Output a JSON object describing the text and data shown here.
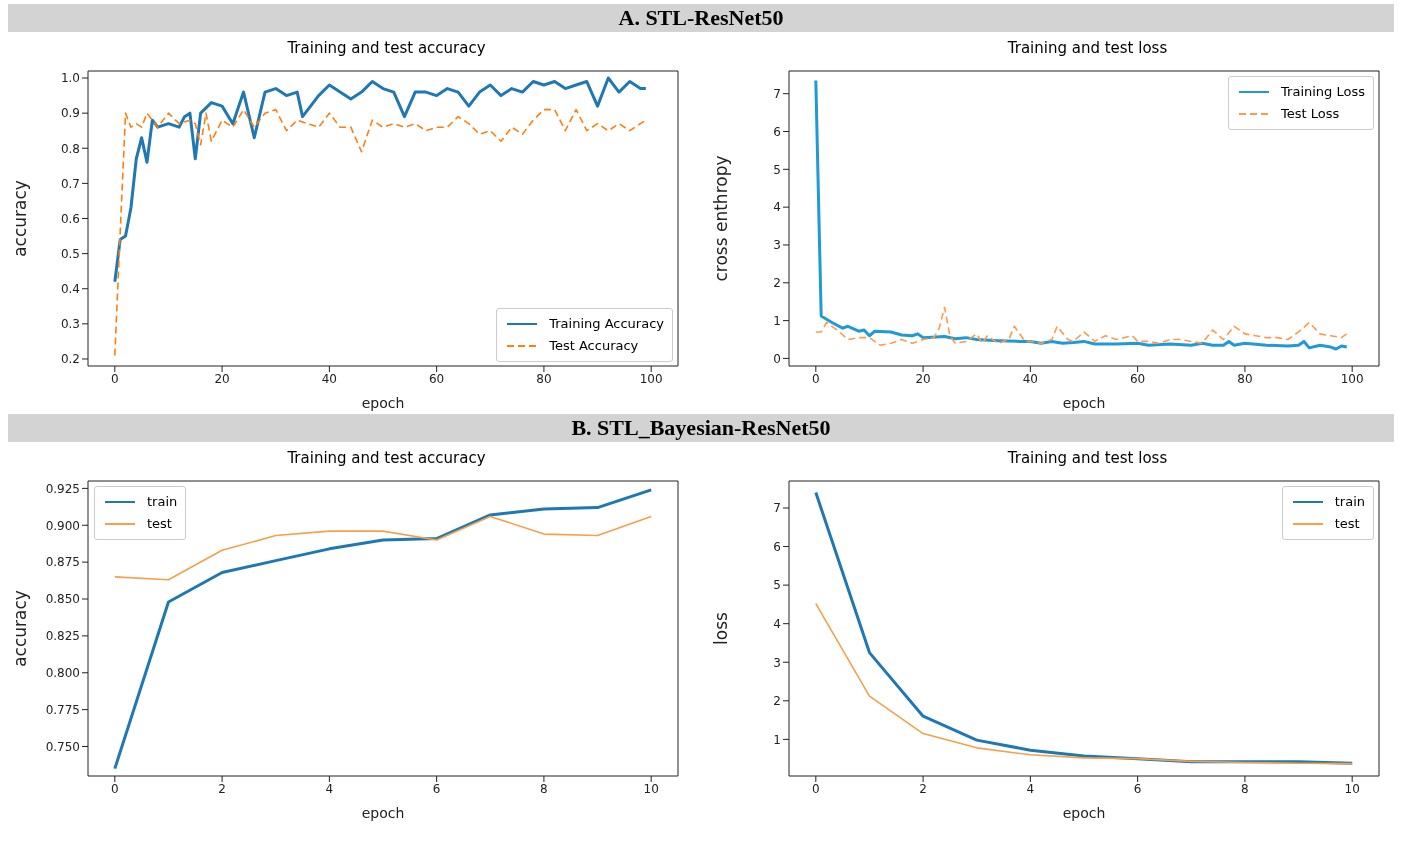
{
  "chart_data": [
    {
      "type": "line",
      "title": "Training and test accuracy",
      "xlabel": "epoch",
      "ylabel": "accuracy",
      "annotations": [
        "A. STL-ResNet50"
      ],
      "legend": "bottom right",
      "grid": false,
      "xlim": [
        -5,
        105
      ],
      "xticks": [
        0,
        20,
        40,
        60,
        80,
        100
      ],
      "ylim": [
        0.18,
        1.02
      ],
      "yticks": [
        {
          "value": 0.2,
          "label": "0.2"
        },
        {
          "value": 0.3,
          "label": "0.3"
        },
        {
          "value": 0.4,
          "label": "0.4"
        },
        {
          "value": 0.5,
          "label": "0.5"
        },
        {
          "value": 0.6,
          "label": "0.6"
        },
        {
          "value": 0.7,
          "label": "0.7"
        },
        {
          "value": 0.8,
          "label": "0.8"
        },
        {
          "value": 0.9,
          "label": "0.9"
        },
        {
          "value": 1.0,
          "label": "1.0"
        }
      ],
      "series": [
        {
          "name": "Training Accuracy",
          "color": "#1f77b4",
          "line_style": "solid",
          "x": [
            0,
            1,
            2,
            3,
            4,
            5,
            6,
            7,
            8,
            10,
            12,
            13,
            14,
            15,
            16,
            18,
            20,
            22,
            24,
            26,
            28,
            30,
            32,
            34,
            35,
            36,
            38,
            40,
            42,
            44,
            46,
            48,
            50,
            52,
            54,
            56,
            58,
            60,
            62,
            64,
            66,
            68,
            70,
            72,
            74,
            76,
            78,
            80,
            82,
            84,
            86,
            88,
            90,
            92,
            94,
            96,
            98,
            99
          ],
          "values": [
            0.42,
            0.54,
            0.55,
            0.63,
            0.77,
            0.83,
            0.76,
            0.88,
            0.86,
            0.87,
            0.86,
            0.89,
            0.9,
            0.77,
            0.9,
            0.93,
            0.92,
            0.87,
            0.96,
            0.83,
            0.96,
            0.97,
            0.95,
            0.96,
            0.89,
            0.91,
            0.95,
            0.98,
            0.96,
            0.94,
            0.96,
            0.99,
            0.97,
            0.96,
            0.89,
            0.96,
            0.96,
            0.95,
            0.97,
            0.96,
            0.92,
            0.96,
            0.98,
            0.95,
            0.97,
            0.96,
            0.99,
            0.98,
            0.99,
            0.97,
            0.98,
            0.99,
            0.92,
            1.0,
            0.96,
            0.99,
            0.97,
            0.97
          ]
        },
        {
          "name": "Test Accuracy",
          "color": "#ff7f0e",
          "line_style": "dashed",
          "x": [
            0,
            1,
            2,
            3,
            4,
            5,
            6,
            7,
            8,
            10,
            12,
            14,
            15,
            16,
            17,
            18,
            20,
            22,
            24,
            26,
            28,
            30,
            32,
            34,
            36,
            38,
            40,
            42,
            44,
            46,
            48,
            50,
            52,
            54,
            56,
            58,
            60,
            62,
            64,
            66,
            68,
            70,
            72,
            74,
            76,
            78,
            80,
            82,
            84,
            86,
            88,
            90,
            92,
            94,
            96,
            98,
            99
          ],
          "values": [
            0.21,
            0.56,
            0.9,
            0.86,
            0.87,
            0.86,
            0.9,
            0.88,
            0.86,
            0.9,
            0.87,
            0.88,
            0.87,
            0.81,
            0.9,
            0.82,
            0.88,
            0.86,
            0.91,
            0.86,
            0.9,
            0.91,
            0.85,
            0.88,
            0.87,
            0.86,
            0.9,
            0.86,
            0.86,
            0.79,
            0.88,
            0.86,
            0.87,
            0.86,
            0.87,
            0.85,
            0.86,
            0.86,
            0.89,
            0.87,
            0.84,
            0.85,
            0.82,
            0.86,
            0.84,
            0.88,
            0.91,
            0.91,
            0.85,
            0.91,
            0.85,
            0.87,
            0.85,
            0.87,
            0.85,
            0.87,
            0.88
          ]
        }
      ]
    },
    {
      "type": "line",
      "title": "Training and test loss",
      "xlabel": "epoch",
      "ylabel": "cross enthropy",
      "legend": "top right",
      "grid": false,
      "xlim": [
        -5,
        105
      ],
      "xticks": [
        0,
        20,
        40,
        60,
        80,
        100
      ],
      "ylim": [
        -0.2,
        7.6
      ],
      "yticks": [
        0,
        1,
        2,
        3,
        4,
        5,
        6,
        7
      ],
      "series": [
        {
          "name": "Training Loss",
          "color": "#1f9ad6",
          "line_style": "solid",
          "x": [
            0,
            1,
            3,
            5,
            6,
            8,
            9,
            10,
            11,
            14,
            16,
            18,
            19,
            20,
            24,
            26,
            28,
            30,
            34,
            38,
            40,
            42,
            44,
            46,
            48,
            50,
            52,
            56,
            60,
            62,
            66,
            70,
            72,
            74,
            76,
            77,
            78,
            80,
            84,
            88,
            90,
            91,
            92,
            94,
            96,
            97,
            98,
            99
          ],
          "values": [
            7.35,
            1.12,
            0.95,
            0.8,
            0.85,
            0.72,
            0.75,
            0.6,
            0.72,
            0.7,
            0.62,
            0.6,
            0.65,
            0.55,
            0.58,
            0.52,
            0.55,
            0.5,
            0.47,
            0.45,
            0.45,
            0.4,
            0.45,
            0.4,
            0.42,
            0.45,
            0.38,
            0.38,
            0.4,
            0.35,
            0.38,
            0.35,
            0.4,
            0.35,
            0.35,
            0.45,
            0.35,
            0.4,
            0.35,
            0.33,
            0.35,
            0.45,
            0.28,
            0.35,
            0.3,
            0.25,
            0.33,
            0.3
          ]
        },
        {
          "name": "Test Loss",
          "color": "#ff9a4a",
          "line_style": "dashed",
          "x": [
            0,
            1,
            2,
            4,
            6,
            8,
            10,
            12,
            14,
            16,
            18,
            20,
            22,
            23,
            24,
            25,
            26,
            28,
            30,
            31,
            32,
            34,
            36,
            37,
            39,
            40,
            42,
            44,
            45,
            47,
            48,
            50,
            52,
            54,
            56,
            59,
            60,
            62,
            64,
            66,
            68,
            70,
            72,
            74,
            76,
            78,
            80,
            82,
            84,
            86,
            88,
            90,
            92,
            94,
            96,
            98,
            99
          ],
          "values": [
            0.7,
            0.7,
            0.95,
            0.75,
            0.5,
            0.55,
            0.55,
            0.35,
            0.4,
            0.5,
            0.4,
            0.5,
            0.55,
            0.8,
            1.35,
            0.6,
            0.4,
            0.45,
            0.65,
            0.4,
            0.6,
            0.4,
            0.5,
            0.85,
            0.45,
            0.45,
            0.4,
            0.5,
            0.85,
            0.5,
            0.45,
            0.7,
            0.45,
            0.6,
            0.5,
            0.6,
            0.45,
            0.45,
            0.4,
            0.5,
            0.5,
            0.45,
            0.4,
            0.75,
            0.5,
            0.85,
            0.65,
            0.6,
            0.55,
            0.55,
            0.5,
            0.7,
            0.95,
            0.65,
            0.6,
            0.55,
            0.65
          ]
        }
      ]
    },
    {
      "type": "line",
      "title": "Training and test accuracy",
      "xlabel": "epoch",
      "ylabel": "accuracy",
      "annotations": [
        "B. STL_Bayesian-ResNet50"
      ],
      "legend": "top left",
      "grid": false,
      "xlim": [
        -0.5,
        10.5
      ],
      "xticks": [
        0,
        2,
        4,
        6,
        8,
        10
      ],
      "ylim": [
        0.73,
        0.93
      ],
      "yticks": [
        {
          "value": 0.75,
          "label": "0.750"
        },
        {
          "value": 0.775,
          "label": "0.775"
        },
        {
          "value": 0.8,
          "label": "0.800"
        },
        {
          "value": 0.825,
          "label": "0.825"
        },
        {
          "value": 0.85,
          "label": "0.850"
        },
        {
          "value": 0.875,
          "label": "0.875"
        },
        {
          "value": 0.9,
          "label": "0.900"
        },
        {
          "value": 0.925,
          "label": "0.925"
        }
      ],
      "series": [
        {
          "name": "train",
          "color": "#1f77b4",
          "x": [
            0,
            1,
            2,
            3,
            4,
            5,
            6,
            7,
            8,
            9,
            10
          ],
          "values": [
            0.735,
            0.848,
            0.868,
            0.876,
            0.884,
            0.89,
            0.891,
            0.907,
            0.911,
            0.912,
            0.924
          ]
        },
        {
          "name": "test",
          "color": "#f5a04a",
          "x": [
            0,
            1,
            2,
            3,
            4,
            5,
            6,
            7,
            8,
            9,
            10
          ],
          "values": [
            0.865,
            0.863,
            0.883,
            0.893,
            0.896,
            0.896,
            0.89,
            0.906,
            0.894,
            0.893,
            0.906
          ]
        }
      ]
    },
    {
      "type": "line",
      "title": "Training and test loss",
      "xlabel": "epoch",
      "ylabel": "loss",
      "legend": "top right",
      "grid": false,
      "xlim": [
        -0.5,
        10.5
      ],
      "xticks": [
        0,
        2,
        4,
        6,
        8,
        10
      ],
      "ylim": [
        0.05,
        7.7
      ],
      "yticks": [
        1,
        2,
        3,
        4,
        5,
        6,
        7
      ],
      "series": [
        {
          "name": "train",
          "color": "#1f77b4",
          "x": [
            0,
            1,
            2,
            3,
            4,
            5,
            6,
            7,
            8,
            9,
            10
          ],
          "values": [
            7.4,
            3.25,
            1.6,
            0.98,
            0.72,
            0.57,
            0.5,
            0.42,
            0.42,
            0.42,
            0.38
          ]
        },
        {
          "name": "test",
          "color": "#f5a04a",
          "x": [
            0,
            1,
            2,
            3,
            4,
            5,
            6,
            7,
            8,
            9,
            10
          ],
          "values": [
            4.52,
            2.12,
            1.15,
            0.78,
            0.6,
            0.52,
            0.5,
            0.43,
            0.4,
            0.38,
            0.37
          ]
        }
      ]
    }
  ]
}
